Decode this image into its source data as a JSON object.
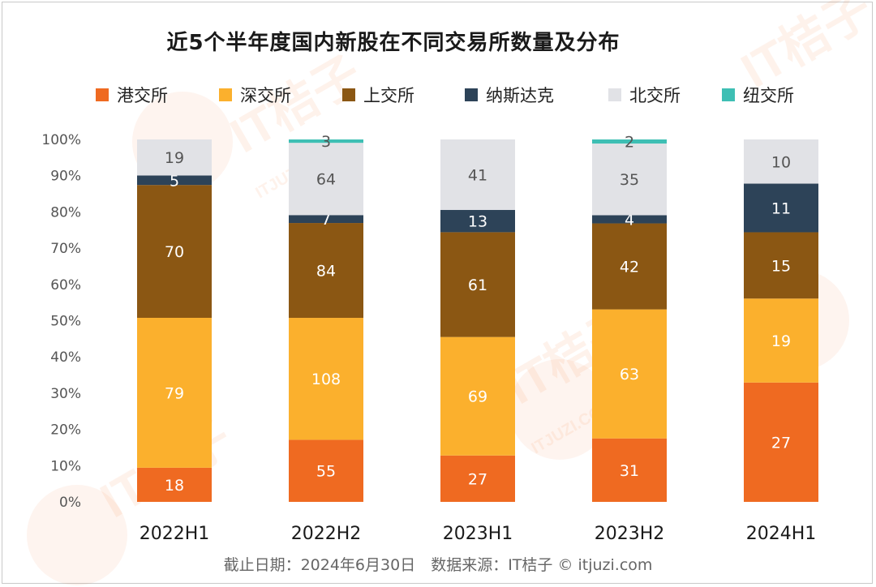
{
  "chart_data": {
    "type": "bar",
    "stacked": true,
    "normalized": true,
    "title": "近5个半年度国内新股在不同交易所数量及分布",
    "categories": [
      "2022H1",
      "2022H2",
      "2023H1",
      "2023H2",
      "2024H1"
    ],
    "y_ticks": [
      "0%",
      "10%",
      "20%",
      "30%",
      "40%",
      "50%",
      "60%",
      "70%",
      "80%",
      "90%",
      "100%"
    ],
    "ylim": [
      0,
      100
    ],
    "legend_position": "top",
    "grid": false,
    "series": [
      {
        "name": "港交所",
        "color": "#ef6a21",
        "label_color": "#ffffff",
        "values": [
          18,
          55,
          27,
          31,
          27
        ]
      },
      {
        "name": "深交所",
        "color": "#fbb02d",
        "label_color": "#ffffff",
        "values": [
          79,
          108,
          69,
          63,
          19
        ]
      },
      {
        "name": "上交所",
        "color": "#8b5713",
        "label_color": "#ffffff",
        "values": [
          70,
          84,
          61,
          42,
          15
        ]
      },
      {
        "name": "纳斯达克",
        "color": "#2d4358",
        "label_color": "#ffffff",
        "values": [
          5,
          7,
          13,
          4,
          11
        ]
      },
      {
        "name": "北交所",
        "color": "#e1e2e6",
        "label_color": "#555555",
        "values": [
          19,
          64,
          41,
          35,
          10
        ]
      },
      {
        "name": "纽交所",
        "color": "#3ebfb4",
        "label_color": "#555555",
        "values": [
          0,
          3,
          0,
          2,
          0
        ]
      }
    ]
  },
  "source_note": "截止日期：2024年6月30日　数据来源：IT桔子 © itjuzi.com",
  "watermark_text": "IT桔子",
  "watermark_url": "ITJUZI.COM"
}
